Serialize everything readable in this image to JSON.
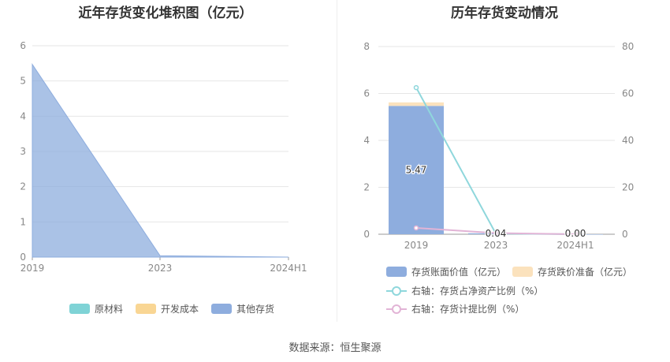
{
  "chart_data": [
    {
      "type": "area",
      "title": "近年存货变化堆积图（亿元）",
      "x": [
        "2019",
        "2023",
        "2024H1"
      ],
      "ylim": [
        0,
        6
      ],
      "yticks": [
        "0",
        "1",
        "2",
        "3",
        "4",
        "5",
        "6"
      ],
      "series": [
        {
          "name": "原材料",
          "color": "#7fd3d6",
          "values": [
            0,
            0,
            0
          ]
        },
        {
          "name": "开发成本",
          "color": "#f9d694",
          "values": [
            0,
            0,
            0
          ]
        },
        {
          "name": "其他存货",
          "color": "#8eadde",
          "values": [
            5.47,
            0.04,
            0.0
          ]
        }
      ],
      "legend_position": "bottom",
      "grid": true
    },
    {
      "type": "bar",
      "title": "历年存货变动情况",
      "categories": [
        "2019",
        "2023",
        "2024H1"
      ],
      "ylim": [
        0,
        8
      ],
      "yticks": [
        "0",
        "2",
        "4",
        "6",
        "8"
      ],
      "y2lim": [
        0,
        80
      ],
      "y2ticks": [
        "0",
        "20",
        "40",
        "60",
        "80"
      ],
      "series": [
        {
          "name": "存货账面价值（亿元）",
          "kind": "bar",
          "color": "#8eadde",
          "values": [
            5.47,
            0.04,
            0.0
          ],
          "labels": [
            "5.47",
            "0.04",
            "0.00"
          ]
        },
        {
          "name": "存货跌价准备（亿元）",
          "kind": "bar",
          "color": "#fbe2bd",
          "values": [
            0.15,
            0,
            0
          ]
        },
        {
          "name": "右轴：存货占净资产比例（%）",
          "kind": "line",
          "axis": "right",
          "color": "#8fd7dc",
          "values": [
            62.5,
            0.3,
            0
          ]
        },
        {
          "name": "右轴：存货计提比例（%）",
          "kind": "line",
          "axis": "right",
          "color": "#e2b4d6",
          "values": [
            2.7,
            0.5,
            0
          ]
        }
      ],
      "legend_position": "bottom",
      "grid": true
    }
  ],
  "source": "数据来源：恒生聚源"
}
